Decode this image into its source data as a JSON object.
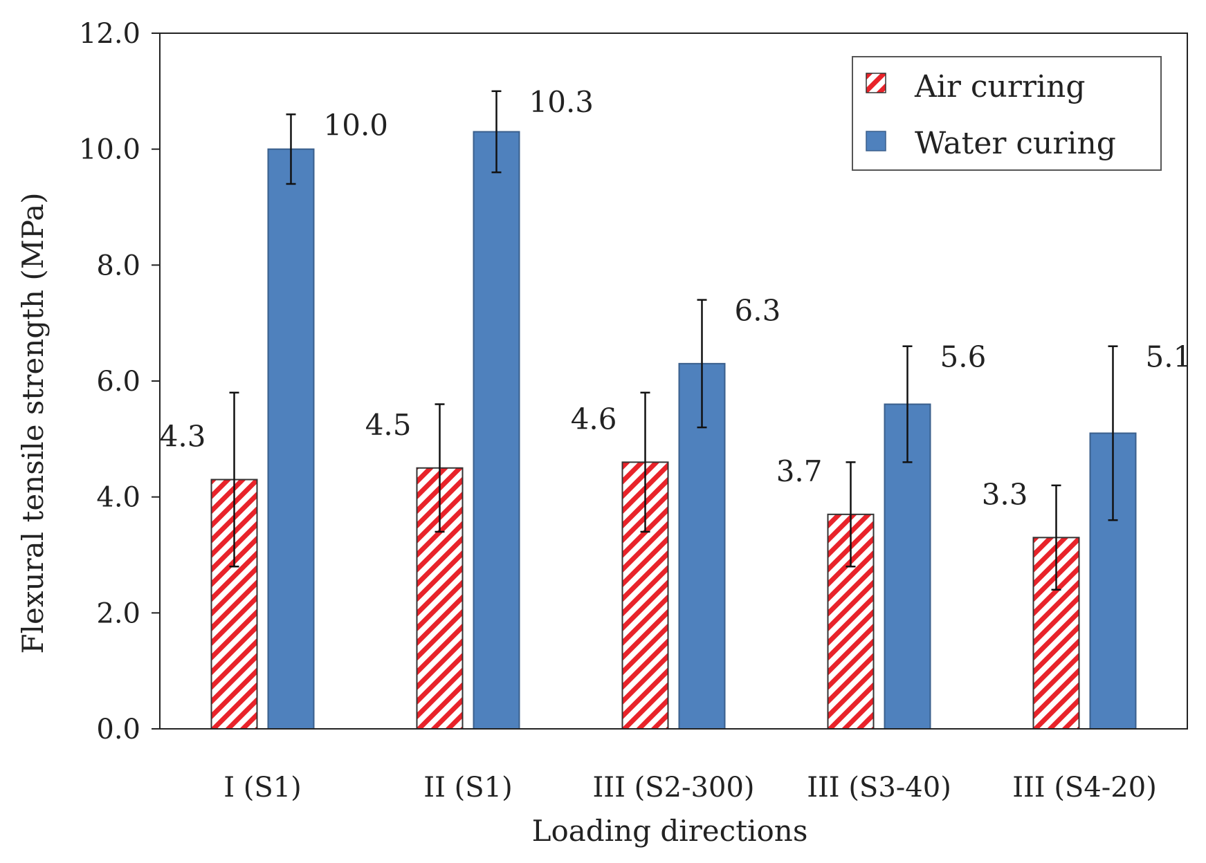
{
  "chart_data": {
    "type": "bar",
    "title": "",
    "xlabel": "Loading directions",
    "ylabel": "Flexural tensile strength (MPa)",
    "ylim": [
      0,
      12
    ],
    "yticks": [
      "0.0",
      "2.0",
      "4.0",
      "6.0",
      "8.0",
      "10.0",
      "12.0"
    ],
    "categories": [
      "I (S1)",
      "II (S1)",
      "III (S2-300)",
      "III (S3-40)",
      "III (S4-20)"
    ],
    "legend_position": "top-right",
    "series": [
      {
        "name": "Air curring",
        "values": [
          4.3,
          4.5,
          4.6,
          3.7,
          3.3
        ],
        "labels": [
          "4.3",
          "4.5",
          "4.6",
          "3.7",
          "3.3"
        ],
        "error_low": [
          2.8,
          3.4,
          3.4,
          2.8,
          2.4
        ],
        "error_high": [
          5.8,
          5.6,
          5.8,
          4.6,
          4.2
        ],
        "color": "#e8232a",
        "pattern": "diagonal-hatch"
      },
      {
        "name": "Water curing",
        "values": [
          10.0,
          10.3,
          6.3,
          5.6,
          5.1
        ],
        "labels": [
          "10.0",
          "10.3",
          "6.3",
          "5.6",
          "5.1"
        ],
        "error_low": [
          9.4,
          9.6,
          5.2,
          4.6,
          3.6
        ],
        "error_high": [
          10.6,
          11.0,
          7.4,
          6.6,
          6.6
        ],
        "color": "#4f81bd",
        "pattern": "solid"
      }
    ]
  }
}
